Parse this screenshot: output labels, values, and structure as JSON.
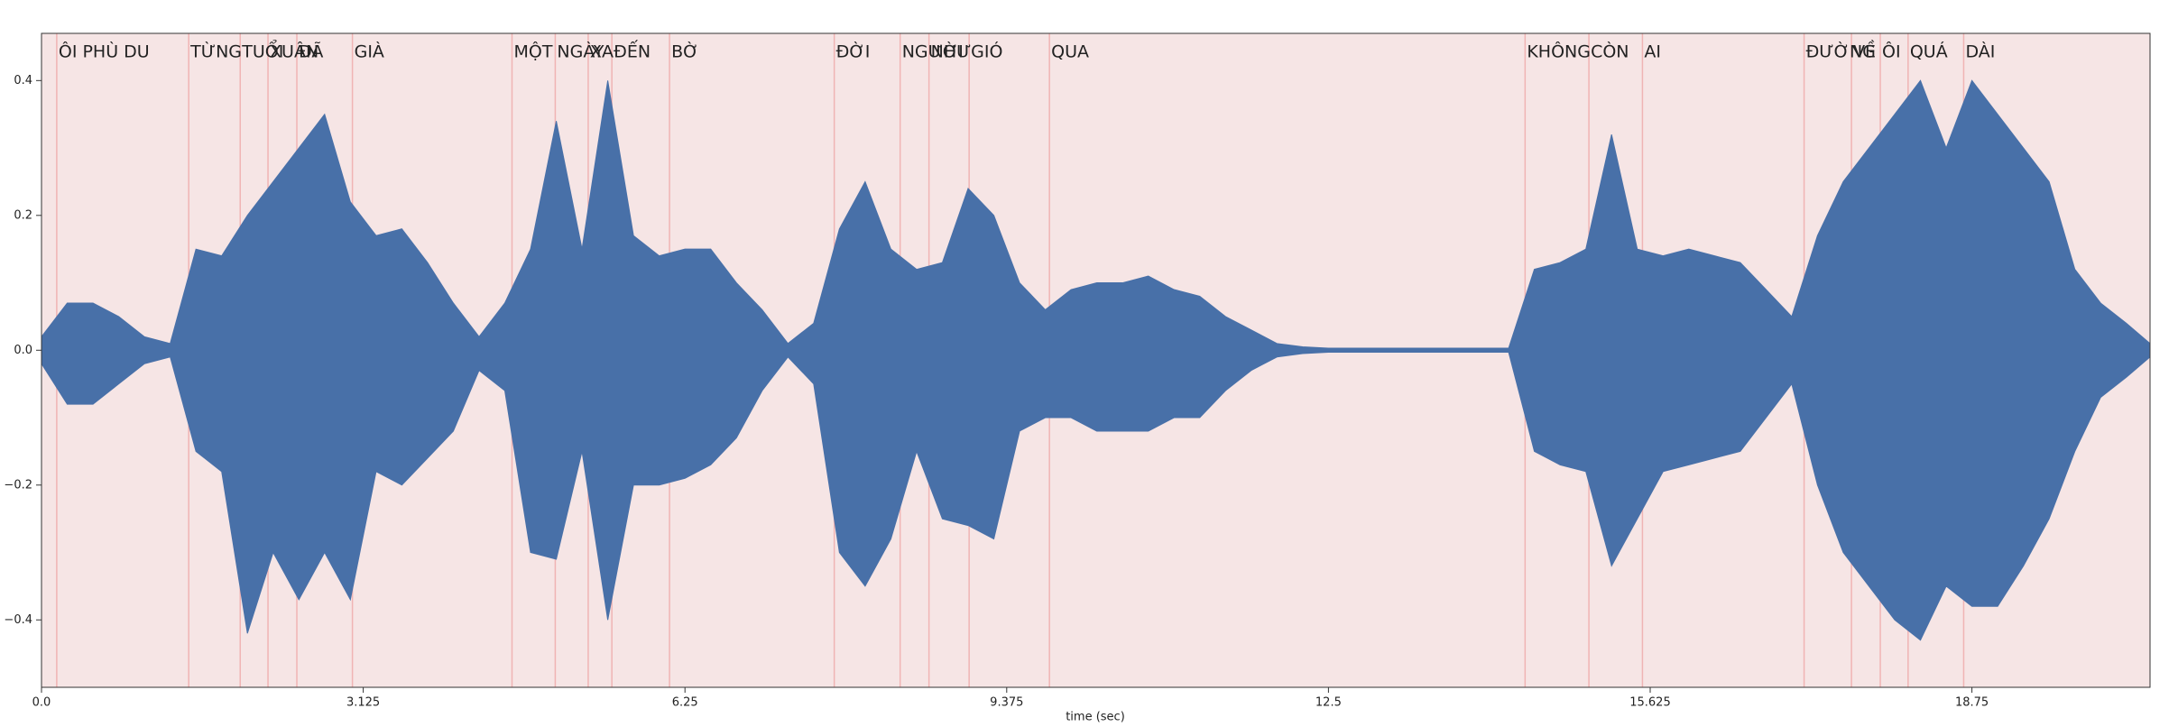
{
  "chart_data": {
    "type": "waveform",
    "x_label": "time (sec)",
    "background": "#f6e5e5",
    "boundary_color": "#f0b4b4",
    "xlim": [
      0,
      20.48
    ],
    "ylim": [
      -0.5,
      0.47
    ],
    "xticks": [
      {
        "value": 0,
        "label": "0.0"
      },
      3.125,
      6.25,
      9.375,
      12.5,
      15.625,
      18.75
    ],
    "yticks": [
      {
        "value": -0.4,
        "label": "−0.4"
      },
      {
        "value": -0.2,
        "label": "−0.2"
      },
      {
        "value": 0,
        "label": "0.0"
      },
      {
        "value": 0.2,
        "label": "0.2"
      },
      {
        "value": 0.4,
        "label": "0.4"
      }
    ],
    "x": [
      0,
      0.25,
      0.5,
      0.75,
      1.0,
      1.25,
      1.5,
      1.75,
      2.0,
      2.25,
      2.5,
      2.75,
      3.0,
      3.25,
      3.5,
      3.75,
      4.0,
      4.25,
      4.5,
      4.75,
      5.0,
      5.25,
      5.5,
      5.75,
      6.0,
      6.25,
      6.5,
      6.75,
      7.0,
      7.25,
      7.5,
      7.75,
      8.0,
      8.25,
      8.5,
      8.75,
      9.0,
      9.25,
      9.5,
      9.75,
      10.0,
      10.25,
      10.5,
      10.75,
      11.0,
      11.25,
      11.5,
      11.75,
      12.0,
      12.25,
      12.5,
      12.75,
      13.0,
      13.25,
      13.5,
      13.75,
      14.0,
      14.25,
      14.5,
      14.75,
      15.0,
      15.25,
      15.5,
      15.75,
      16.0,
      16.25,
      16.5,
      16.75,
      17.0,
      17.25,
      17.5,
      17.75,
      18.0,
      18.25,
      18.5,
      18.75,
      19.0,
      19.25,
      19.5,
      19.75,
      20.0,
      20.25,
      20.48
    ],
    "series": [
      {
        "color": "#4870a8",
        "values": [
          0.02,
          0.07,
          0.07,
          0.05,
          0.02,
          0.01,
          0.15,
          0.14,
          0.2,
          0.25,
          0.3,
          0.35,
          0.22,
          0.17,
          0.18,
          0.13,
          0.07,
          0.02,
          0.07,
          0.15,
          0.34,
          0.15,
          0.4,
          0.17,
          0.14,
          0.15,
          0.15,
          0.1,
          0.06,
          0.01,
          0.04,
          0.18,
          0.25,
          0.15,
          0.12,
          0.13,
          0.24,
          0.2,
          0.1,
          0.06,
          0.09,
          0.1,
          0.1,
          0.11,
          0.09,
          0.08,
          0.05,
          0.03,
          0.01,
          0.005,
          0.003,
          0.003,
          0.003,
          0.003,
          0.003,
          0.003,
          0.003,
          0.003,
          0.12,
          0.13,
          0.15,
          0.32,
          0.15,
          0.14,
          0.15,
          0.14,
          0.13,
          0.09,
          0.05,
          0.17,
          0.25,
          0.3,
          0.35,
          0.4,
          0.3,
          0.4,
          0.35,
          0.3,
          0.25,
          0.12,
          0.07,
          0.04,
          0.01
        ]
      },
      {
        "color": "#4870a8",
        "values": [
          -0.02,
          -0.08,
          -0.08,
          -0.05,
          -0.02,
          -0.01,
          -0.15,
          -0.18,
          -0.42,
          -0.3,
          -0.37,
          -0.3,
          -0.37,
          -0.18,
          -0.2,
          -0.16,
          -0.12,
          -0.03,
          -0.06,
          -0.3,
          -0.31,
          -0.15,
          -0.4,
          -0.2,
          -0.2,
          -0.19,
          -0.17,
          -0.13,
          -0.06,
          -0.01,
          -0.05,
          -0.3,
          -0.35,
          -0.28,
          -0.15,
          -0.25,
          -0.26,
          -0.28,
          -0.12,
          -0.1,
          -0.1,
          -0.12,
          -0.12,
          -0.12,
          -0.1,
          -0.1,
          -0.06,
          -0.03,
          -0.01,
          -0.005,
          -0.003,
          -0.003,
          -0.003,
          -0.003,
          -0.003,
          -0.003,
          -0.003,
          -0.003,
          -0.15,
          -0.17,
          -0.18,
          -0.32,
          -0.25,
          -0.18,
          -0.17,
          -0.16,
          -0.15,
          -0.1,
          -0.05,
          -0.2,
          -0.3,
          -0.35,
          -0.4,
          -0.43,
          -0.35,
          -0.38,
          -0.38,
          -0.32,
          -0.25,
          -0.15,
          -0.07,
          -0.04,
          -0.01
        ]
      }
    ],
    "annotations": [
      {
        "label": "ÔI PHÙ DU",
        "x": 0.148
      },
      {
        "label": "TỪNG",
        "x": 1.43
      },
      {
        "label": "TUỔI",
        "x": 1.93
      },
      {
        "label": "XUÂN",
        "x": 2.2
      },
      {
        "label": "ĐÃ",
        "x": 2.48
      },
      {
        "label": "GIÀ",
        "x": 3.02
      },
      {
        "label": "MỘT",
        "x": 4.57
      },
      {
        "label": "NGÀY",
        "x": 4.99
      },
      {
        "label": "XA",
        "x": 5.31
      },
      {
        "label": "ĐẾN",
        "x": 5.54
      },
      {
        "label": "BỜ",
        "x": 6.1
      },
      {
        "label": "ĐỜI",
        "x": 7.7
      },
      {
        "label": "NGƯỜI",
        "x": 8.34
      },
      {
        "label": "NHƯ",
        "x": 8.62
      },
      {
        "label": "GIÓ",
        "x": 9.01
      },
      {
        "label": "QUA",
        "x": 9.79
      },
      {
        "label": "KHÔNG",
        "x": 14.41
      },
      {
        "label": "CÒN",
        "x": 15.03
      },
      {
        "label": "AI",
        "x": 15.55
      },
      {
        "label": "ĐƯỜNG",
        "x": 17.12
      },
      {
        "label": "VỀ",
        "x": 17.58
      },
      {
        "label": "ÔI",
        "x": 17.86
      },
      {
        "label": "QUÁ",
        "x": 18.13
      },
      {
        "label": "DÀI",
        "x": 18.67
      }
    ]
  }
}
